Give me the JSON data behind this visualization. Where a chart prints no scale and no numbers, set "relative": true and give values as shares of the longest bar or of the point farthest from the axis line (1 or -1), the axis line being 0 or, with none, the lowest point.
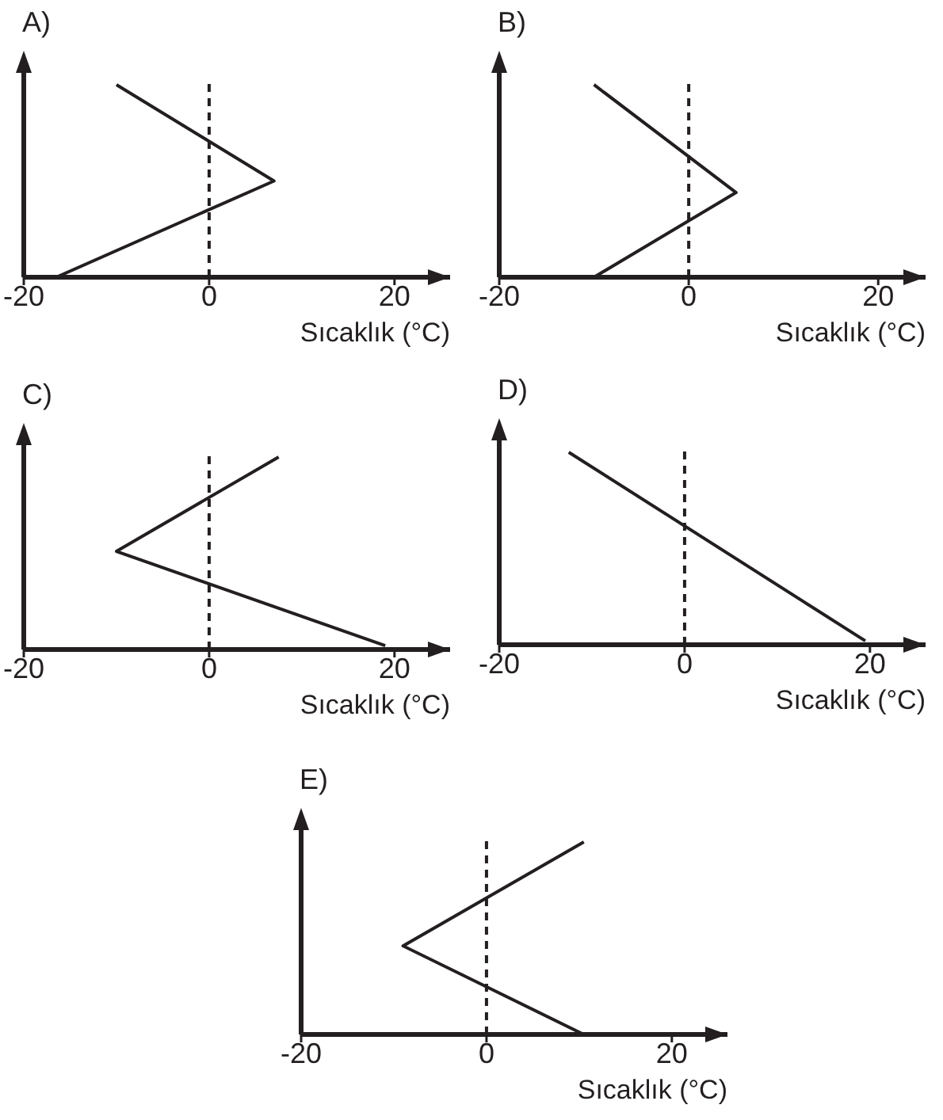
{
  "chart_data": [
    {
      "type": "line",
      "title": "A)",
      "xlabel": "Sıcaklık (°C)",
      "relative": true,
      "xlim": [
        -20,
        26
      ],
      "xticks": [
        -20,
        0,
        20
      ],
      "grid": false,
      "legend": false,
      "marker": "none",
      "series": [
        {
          "color": "#231f20",
          "x": [
            -16.5,
            7,
            -10
          ],
          "values": [
            0,
            0.5,
            1
          ]
        }
      ],
      "ref_lines": [
        {
          "axis": "x",
          "value": 0,
          "line_style": "dashed",
          "color": "#231f20"
        }
      ]
    },
    {
      "type": "line",
      "title": "B)",
      "xlabel": "Sıcaklık (°C)",
      "relative": true,
      "xlim": [
        -20,
        25
      ],
      "xticks": [
        -20,
        0,
        20
      ],
      "grid": false,
      "legend": false,
      "marker": "none",
      "series": [
        {
          "color": "#231f20",
          "x": [
            -10,
            5,
            -10
          ],
          "values": [
            0,
            0.44,
            1
          ]
        }
      ],
      "ref_lines": [
        {
          "axis": "x",
          "value": 0,
          "line_style": "dashed",
          "color": "#231f20"
        }
      ]
    },
    {
      "type": "line",
      "title": "C)",
      "xlabel": "Sıcaklık (°C)",
      "relative": true,
      "xlim": [
        -20,
        26
      ],
      "xticks": [
        -20,
        0,
        20
      ],
      "grid": false,
      "legend": false,
      "marker": "none",
      "series": [
        {
          "color": "#231f20",
          "x": [
            19,
            -10,
            7.5
          ],
          "values": [
            0.02,
            0.51,
            1
          ]
        }
      ],
      "ref_lines": [
        {
          "axis": "x",
          "value": 0,
          "line_style": "dashed",
          "color": "#231f20"
        }
      ]
    },
    {
      "type": "line",
      "title": "D)",
      "xlabel": "Sıcaklık (°C)",
      "relative": true,
      "xlim": [
        -20,
        26
      ],
      "xticks": [
        -20,
        0,
        20
      ],
      "grid": false,
      "legend": false,
      "marker": "none",
      "series": [
        {
          "color": "#231f20",
          "x": [
            19.5,
            -12.5
          ],
          "values": [
            0.02,
            1
          ]
        }
      ],
      "ref_lines": [
        {
          "axis": "x",
          "value": 0,
          "line_style": "dashed",
          "color": "#231f20"
        }
      ]
    },
    {
      "type": "line",
      "title": "E)",
      "xlabel": "Sıcaklık (°C)",
      "relative": true,
      "xlim": [
        -20,
        26
      ],
      "xticks": [
        -20,
        0,
        20
      ],
      "grid": false,
      "legend": false,
      "marker": "none",
      "series": [
        {
          "color": "#231f20",
          "x": [
            10.5,
            -9,
            10.5
          ],
          "values": [
            0,
            0.46,
            1
          ]
        }
      ],
      "ref_lines": [
        {
          "axis": "x",
          "value": 0,
          "line_style": "dashed",
          "color": "#231f20"
        }
      ]
    }
  ]
}
